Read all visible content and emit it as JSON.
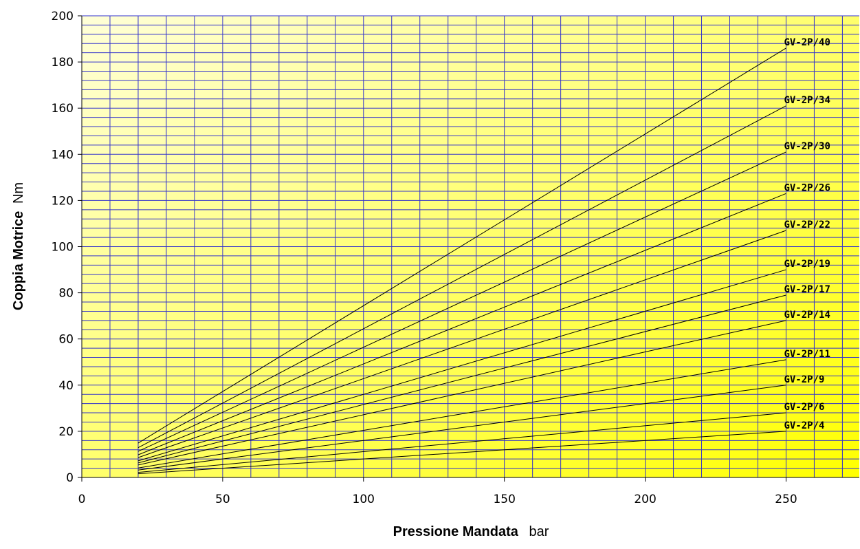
{
  "chart_data": {
    "type": "line",
    "xlabel": "Pressione Mandata",
    "xunit": "bar",
    "ylabel": "Coppia Motrice",
    "yunit": "Nm",
    "xlim": [
      0,
      276
    ],
    "ylim": [
      0,
      200
    ],
    "x_ticks": [
      0,
      50,
      100,
      150,
      200,
      250
    ],
    "y_ticks": [
      0,
      20,
      40,
      60,
      80,
      100,
      120,
      140,
      160,
      180,
      200
    ],
    "x_minor_step": 10,
    "y_minor_step": 4,
    "grid": true,
    "colors": {
      "grid": "#3333cc",
      "line": "#000000",
      "bg_light": "#ffffd8",
      "bg_dark": "#ffff00"
    },
    "series": [
      {
        "name": "GV-2P/40",
        "x": [
          20,
          250
        ],
        "y": [
          14.9,
          186
        ]
      },
      {
        "name": "GV-2P/34",
        "x": [
          20,
          250
        ],
        "y": [
          12.9,
          161
        ]
      },
      {
        "name": "GV-2P/30",
        "x": [
          20,
          250
        ],
        "y": [
          11.3,
          141
        ]
      },
      {
        "name": "GV-2P/26",
        "x": [
          20,
          250
        ],
        "y": [
          9.8,
          123
        ]
      },
      {
        "name": "GV-2P/22",
        "x": [
          20,
          250
        ],
        "y": [
          8.6,
          107
        ]
      },
      {
        "name": "GV-2P/19",
        "x": [
          20,
          250
        ],
        "y": [
          7.2,
          90
        ]
      },
      {
        "name": "GV-2P/17",
        "x": [
          20,
          250
        ],
        "y": [
          6.3,
          79
        ]
      },
      {
        "name": "GV-2P/14",
        "x": [
          20,
          250
        ],
        "y": [
          5.4,
          68
        ]
      },
      {
        "name": "GV-2P/11",
        "x": [
          20,
          250
        ],
        "y": [
          4.1,
          51
        ]
      },
      {
        "name": "GV-2P/9",
        "x": [
          20,
          250
        ],
        "y": [
          3.2,
          40
        ]
      },
      {
        "name": "GV-2P/6",
        "x": [
          20,
          250
        ],
        "y": [
          2.2,
          28
        ]
      },
      {
        "name": "GV-2P/4",
        "x": [
          20,
          250
        ],
        "y": [
          1.6,
          20
        ]
      }
    ]
  }
}
